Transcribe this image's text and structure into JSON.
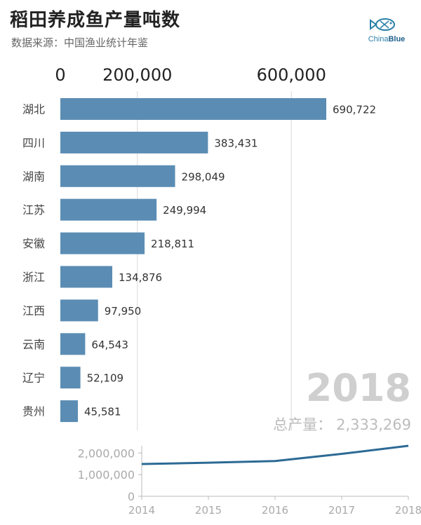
{
  "header": {
    "title": "稻田养成鱼产量吨数",
    "subtitle": "数据来源：中国渔业统计年鉴"
  },
  "logo": {
    "text_part1": "China",
    "text_part2": "Blue",
    "icon": "fish-icon",
    "color": "#2a7fa8"
  },
  "year_display": "2018",
  "total": {
    "label": "总产量：",
    "value": "2,333,269"
  },
  "colors": {
    "bar": "#5b8db4",
    "line": "#2c6a94",
    "grid": "#d8d8d8"
  },
  "chart_data": [
    {
      "type": "bar",
      "orientation": "horizontal",
      "year": 2018,
      "categories": [
        "湖北",
        "四川",
        "湖南",
        "江苏",
        "安徽",
        "浙江",
        "江西",
        "云南",
        "辽宁",
        "贵州"
      ],
      "values": [
        690722,
        383431,
        298049,
        249994,
        218811,
        134876,
        97950,
        64543,
        52109,
        45581
      ],
      "value_labels": [
        "690,722",
        "383,431",
        "298,049",
        "249,994",
        "218,811",
        "134,876",
        "97,950",
        "64,543",
        "52,109",
        "45,581"
      ],
      "xlim": [
        0,
        690722
      ],
      "x_ticks": [
        0,
        200000,
        600000
      ],
      "x_tick_labels": [
        "0",
        "200,000",
        "600,000"
      ],
      "grid": true,
      "axis_position": "top"
    },
    {
      "type": "line",
      "x": [
        2014,
        2015,
        2016,
        2017,
        2018
      ],
      "values": [
        1490000,
        1550000,
        1630000,
        1960000,
        2333269
      ],
      "ylim": [
        0,
        2333269
      ],
      "y_ticks": [
        0,
        1000000,
        2000000
      ],
      "y_tick_labels": [
        "0",
        "1,000,000",
        "2,000,000"
      ],
      "x_tick_labels": [
        "2014",
        "2015",
        "2016",
        "2017",
        "2018"
      ]
    }
  ]
}
